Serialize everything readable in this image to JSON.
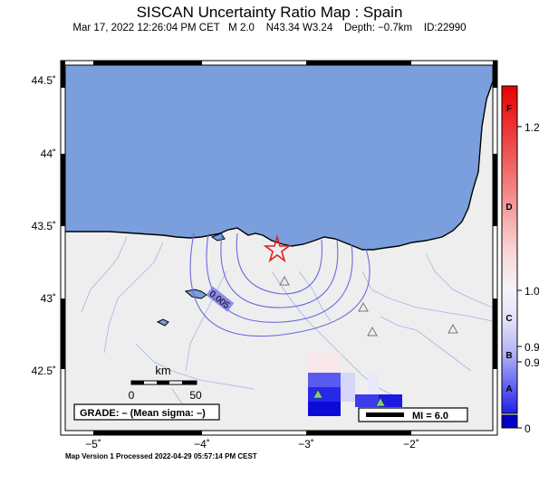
{
  "title": "SISCAN Uncertainty Ratio Map : Spain",
  "subtitle": "Mar 17, 2022 12:26:04 PM CET   M 2.0    N43.34 W3.24    Depth: −0.7km    ID:22990",
  "footer": "Map Version 1 Processed 2022-04-29 05:57:14 PM CEST",
  "map": {
    "lat_labels": [
      "44.5˚",
      "44˚",
      "43.5˚",
      "43˚",
      "42.5˚"
    ],
    "lon_labels": [
      "−5˚",
      "−4˚",
      "−3˚",
      "−2˚"
    ],
    "contour_label": "0.005",
    "scale_bar": {
      "unit": "km",
      "ticks": [
        "0",
        "50"
      ]
    },
    "grade_box": "GRADE: – (Mean sigma: –)",
    "mi_legend": "MI = 6.0",
    "epicenter": {
      "lat": 43.34,
      "lon": -3.24
    },
    "colors": {
      "sea": "#7a9fdc",
      "land": "#eeeeee",
      "river": "#9fb6e6",
      "contour": "#6a6ae0",
      "epicenter": "#e02020"
    }
  },
  "colorbar": {
    "letters": [
      "F",
      "D",
      "C",
      "B",
      "A"
    ],
    "values": [
      "1.2",
      "1.0",
      "0.9",
      "0.9",
      "0"
    ]
  }
}
